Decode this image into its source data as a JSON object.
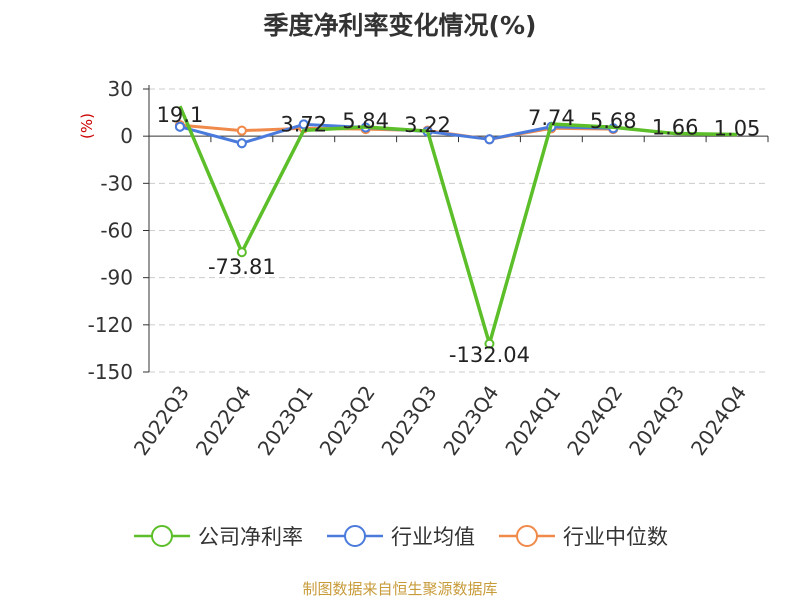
{
  "chart_data": {
    "type": "line",
    "title": "季度净利率变化情况(%)",
    "ylabel": "(%)",
    "categories": [
      "2022Q3",
      "2022Q4",
      "2023Q1",
      "2023Q2",
      "2023Q3",
      "2023Q4",
      "2024Q1",
      "2024Q2",
      "2024Q3",
      "2024Q4"
    ],
    "yticks": [
      30,
      0,
      -30,
      -60,
      -90,
      -120,
      -150
    ],
    "ylim": [
      -150,
      30
    ],
    "grid": true,
    "legend_position": "bottom",
    "series": [
      {
        "name": "公司净利率",
        "color": "#5cbf2a",
        "values": [
          19.1,
          -73.81,
          3.72,
          5.84,
          3.22,
          -132.04,
          7.74,
          5.68,
          1.66,
          1.05
        ],
        "labels": [
          "19.1",
          "-73.81",
          "3.72",
          "5.84",
          "3.22",
          "-132.04",
          "7.74",
          "5.68",
          "1.66",
          "1.05"
        ]
      },
      {
        "name": "行业均值",
        "color": "#4a7bdc",
        "values": [
          6.0,
          -4.5,
          7.5,
          5.5,
          3.0,
          -2.0,
          6.0,
          5.0,
          null,
          null
        ]
      },
      {
        "name": "行业中位数",
        "color": "#f08a4b",
        "values": [
          7.0,
          3.5,
          5.0,
          4.5,
          3.5,
          -2.0,
          5.0,
          4.5,
          null,
          null
        ]
      }
    ]
  },
  "source": "制图数据来自恒生聚源数据库"
}
